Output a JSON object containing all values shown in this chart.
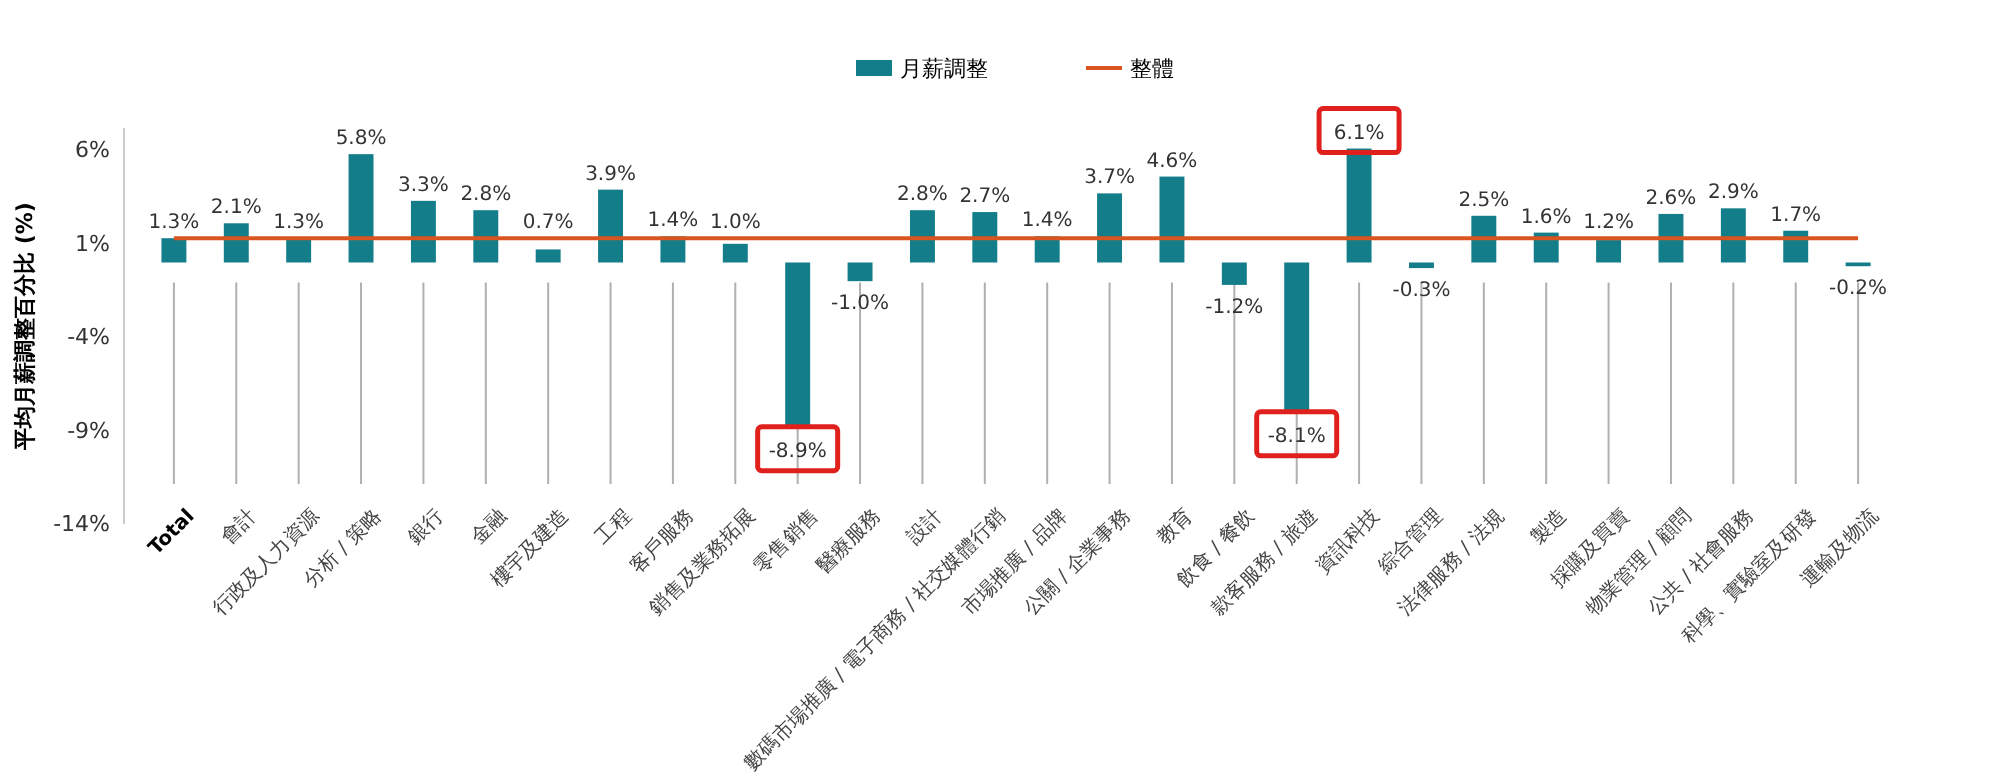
{
  "chart_data": {
    "type": "bar",
    "ylabel": "平均月薪調整百分比 (%)",
    "categories": [
      "Total",
      "會計",
      "行政及人力資源",
      "分析 / 策略",
      "銀行",
      "金融",
      "樓宇及建造",
      "工程",
      "客戶服務",
      "銷售及業務拓展",
      "零售銷售",
      "醫療服務",
      "設計",
      "數碼市場推廣 / 電子商務 / 社交媒體行銷",
      "市場推廣 / 品牌",
      "公關 / 企業事務",
      "教育",
      "飲食 / 餐飲",
      "款客服務 / 旅遊",
      "資訊科技",
      "綜合管理",
      "法律服務 / 法規",
      "製造",
      "採購及買賣",
      "物業管理 / 顧問",
      "公共 / 社會服務",
      "科學、實驗室及研發",
      "運輸及物流"
    ],
    "series": [
      {
        "name": "月薪調整",
        "color": "#137e8a",
        "values": [
          1.3,
          2.1,
          1.3,
          5.8,
          3.3,
          2.8,
          0.7,
          3.9,
          1.4,
          1.0,
          -8.9,
          -1.0,
          2.8,
          2.7,
          1.4,
          3.7,
          4.6,
          -1.2,
          -8.1,
          6.1,
          -0.3,
          2.5,
          1.6,
          1.2,
          2.6,
          2.9,
          1.7,
          -0.2
        ],
        "value_labels": [
          "1.3%",
          "2.1%",
          "1.3%",
          "5.8%",
          "3.3%",
          "2.8%",
          "0.7%",
          "3.9%",
          "1.4%",
          "1.0%",
          "-8.9%",
          "-1.0%",
          "2.8%",
          "2.7%",
          "1.4%",
          "3.7%",
          "4.6%",
          "-1.2%",
          "-8.1%",
          "6.1%",
          "-0.3%",
          "2.5%",
          "1.6%",
          "1.2%",
          "2.6%",
          "2.9%",
          "1.7%",
          "-0.2%"
        ]
      },
      {
        "name": "整體",
        "type": "line",
        "color": "#d9541e",
        "values": [
          1.3,
          1.3,
          1.3,
          1.3,
          1.3,
          1.3,
          1.3,
          1.3,
          1.3,
          1.3,
          1.3,
          1.3,
          1.3,
          1.3,
          1.3,
          1.3,
          1.3,
          1.3,
          1.3,
          1.3,
          1.3,
          1.3,
          1.3,
          1.3,
          1.3,
          1.3,
          1.3,
          1.3
        ]
      }
    ],
    "ylim": [
      -14,
      7.2
    ],
    "yticks": [
      {
        "value": 6,
        "label": "6%"
      },
      {
        "value": 1,
        "label": "1%"
      },
      {
        "value": -4,
        "label": "-4%"
      },
      {
        "value": -9,
        "label": "-9%"
      },
      {
        "value": -14,
        "label": "-14%"
      }
    ],
    "legend": "top",
    "marker": "none",
    "line_style": "solid"
  }
}
